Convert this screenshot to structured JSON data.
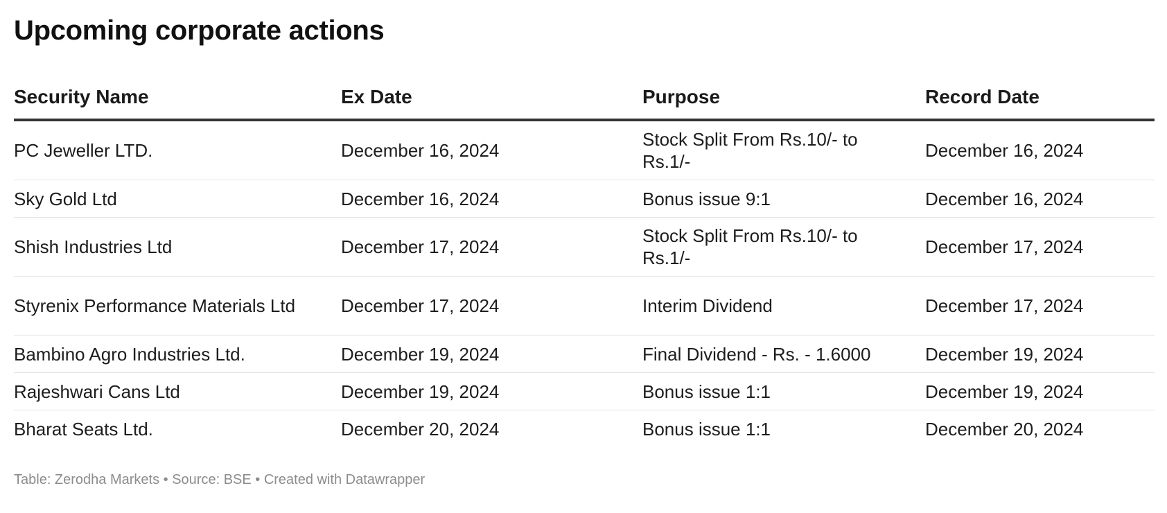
{
  "title": "Upcoming corporate actions",
  "footer": "Table: Zerodha Markets • Source: BSE • Created with Datawrapper",
  "chart_data": {
    "type": "table",
    "title": "Upcoming corporate actions",
    "columns": [
      "Security Name",
      "Ex Date",
      "Purpose",
      "Record Date"
    ],
    "rows": [
      [
        "PC Jeweller LTD.",
        "December 16, 2024",
        "Stock Split From Rs.10/- to Rs.1/-",
        "December 16, 2024"
      ],
      [
        "Sky Gold Ltd",
        "December 16, 2024",
        "Bonus issue 9:1",
        "December 16, 2024"
      ],
      [
        "Shish Industries Ltd",
        "December 17, 2024",
        "Stock Split From Rs.10/- to Rs.1/-",
        "December 17, 2024"
      ],
      [
        "Styrenix Performance Materials Ltd",
        "December 17, 2024",
        "Interim Dividend",
        "December 17, 2024"
      ],
      [
        "Bambino Agro Industries Ltd.",
        "December 19, 2024",
        "Final Dividend - Rs. - 1.6000",
        "December 19, 2024"
      ],
      [
        "Rajeshwari Cans Ltd",
        "December 19, 2024",
        "Bonus issue 1:1",
        "December 19, 2024"
      ],
      [
        "Bharat Seats Ltd.",
        "December 20, 2024",
        "Bonus issue 1:1",
        "December 20, 2024"
      ]
    ]
  }
}
